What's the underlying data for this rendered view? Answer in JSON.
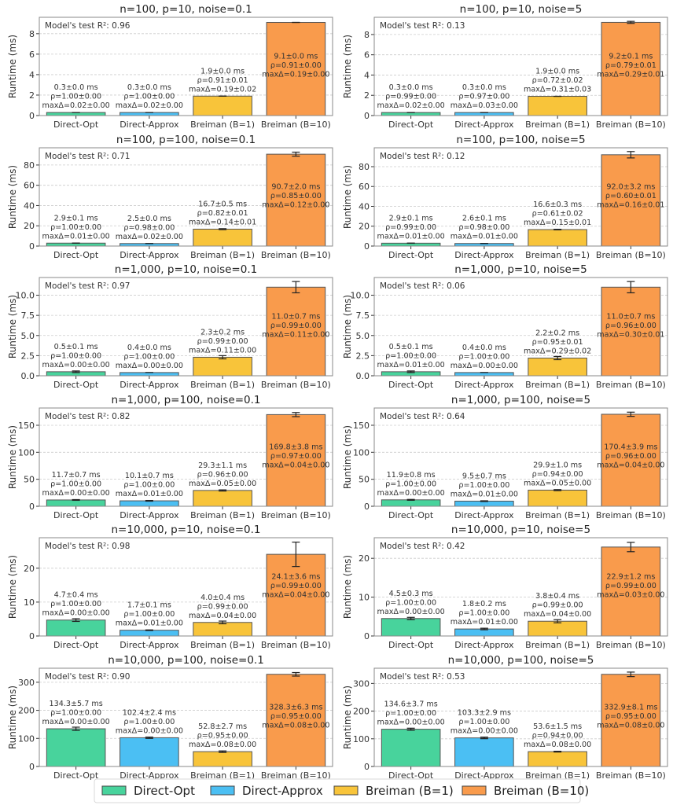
{
  "chart_data": {
    "type": "bar",
    "layout": "6 rows x 2 columns grid of bar charts",
    "categories": [
      "Direct-Opt",
      "Direct-Approx",
      "Breiman (B=1)",
      "Breiman (B=10)"
    ],
    "colors": [
      "#48d39c",
      "#4bbff3",
      "#f8c43a",
      "#f99b4c"
    ],
    "ylabel": "Runtime (ms)",
    "grid": true,
    "legend": {
      "placement": "bottom-center",
      "entries": [
        "Direct-Opt",
        "Direct-Approx",
        "Breiman (B=1)",
        "Breiman (B=10)"
      ]
    },
    "panels": [
      {
        "title": "n=100, p=10, noise=0.1",
        "r2_label": "Model's test R²: 0.96",
        "ylim": [
          0,
          9.6
        ],
        "yticks": [
          0,
          2,
          4,
          6,
          8
        ],
        "ytick_labels": [
          "0",
          "2",
          "4",
          "6",
          "8"
        ],
        "values": [
          0.3,
          0.3,
          1.9,
          9.1
        ],
        "errors": [
          0.0,
          0.0,
          0.0,
          0.0
        ],
        "labels": [
          [
            "0.3±0.0 ms",
            "ρ=1.00±0.00",
            "maxΔ=0.02±0.00"
          ],
          [
            "0.3±0.0 ms",
            "ρ=1.00±0.00",
            "maxΔ=0.02±0.00"
          ],
          [
            "1.9±0.0 ms",
            "ρ=0.91±0.01",
            "maxΔ=0.19±0.02"
          ],
          [
            "9.1±0.0 ms",
            "ρ=0.91±0.00",
            "maxΔ=0.19±0.00"
          ]
        ]
      },
      {
        "title": "n=100, p=10, noise=5",
        "r2_label": "Model's test R²: 0.13",
        "ylim": [
          0,
          9.7
        ],
        "yticks": [
          0,
          2,
          4,
          6,
          8
        ],
        "ytick_labels": [
          "0",
          "2",
          "4",
          "6",
          "8"
        ],
        "values": [
          0.3,
          0.3,
          1.9,
          9.2
        ],
        "errors": [
          0.0,
          0.0,
          0.0,
          0.1
        ],
        "labels": [
          [
            "0.3±0.0 ms",
            "ρ=0.99±0.00",
            "maxΔ=0.02±0.00"
          ],
          [
            "0.3±0.0 ms",
            "ρ=0.97±0.00",
            "maxΔ=0.03±0.00"
          ],
          [
            "1.9±0.0 ms",
            "ρ=0.72±0.02",
            "maxΔ=0.31±0.03"
          ],
          [
            "9.2±0.1 ms",
            "ρ=0.79±0.01",
            "maxΔ=0.29±0.01"
          ]
        ]
      },
      {
        "title": "n=100, p=100, noise=0.1",
        "r2_label": "Model's test R²: 0.71",
        "ylim": [
          0,
          97
        ],
        "yticks": [
          0,
          20,
          40,
          60,
          80
        ],
        "ytick_labels": [
          "0",
          "20",
          "40",
          "60",
          "80"
        ],
        "values": [
          2.9,
          2.5,
          16.7,
          90.7
        ],
        "errors": [
          0.1,
          0.0,
          0.5,
          2.0
        ],
        "labels": [
          [
            "2.9±0.1 ms",
            "ρ=1.00±0.00",
            "maxΔ=0.01±0.00"
          ],
          [
            "2.5±0.0 ms",
            "ρ=0.98±0.00",
            "maxΔ=0.02±0.00"
          ],
          [
            "16.7±0.5 ms",
            "ρ=0.82±0.01",
            "maxΔ=0.14±0.01"
          ],
          [
            "90.7±2.0 ms",
            "ρ=0.85±0.00",
            "maxΔ=0.12±0.00"
          ]
        ]
      },
      {
        "title": "n=100, p=100, noise=5",
        "r2_label": "Model's test R²: 0.12",
        "ylim": [
          0,
          99
        ],
        "yticks": [
          0,
          20,
          40,
          60,
          80
        ],
        "ytick_labels": [
          "0",
          "20",
          "40",
          "60",
          "80"
        ],
        "values": [
          2.9,
          2.6,
          16.6,
          92.0
        ],
        "errors": [
          0.1,
          0.1,
          0.3,
          3.2
        ],
        "labels": [
          [
            "2.9±0.1 ms",
            "ρ=0.99±0.00",
            "maxΔ=0.01±0.00"
          ],
          [
            "2.6±0.1 ms",
            "ρ=0.98±0.00",
            "maxΔ=0.01±0.00"
          ],
          [
            "16.6±0.3 ms",
            "ρ=0.61±0.02",
            "maxΔ=0.15±0.01"
          ],
          [
            "92.0±3.2 ms",
            "ρ=0.60±0.01",
            "maxΔ=0.16±0.01"
          ]
        ]
      },
      {
        "title": "n=1,000, p=10, noise=0.1",
        "r2_label": "Model's test R²: 0.97",
        "ylim": [
          0,
          12.2
        ],
        "yticks": [
          0,
          2.5,
          5,
          7.5,
          10
        ],
        "ytick_labels": [
          "0.0",
          "2.5",
          "5.0",
          "7.5",
          "10.0"
        ],
        "values": [
          0.5,
          0.4,
          2.3,
          11.0
        ],
        "errors": [
          0.1,
          0.0,
          0.2,
          0.7
        ],
        "labels": [
          [
            "0.5±0.1 ms",
            "ρ=1.00±0.00",
            "maxΔ=0.00±0.00"
          ],
          [
            "0.4±0.0 ms",
            "ρ=1.00±0.00",
            "maxΔ=0.00±0.00"
          ],
          [
            "2.3±0.2 ms",
            "ρ=0.99±0.00",
            "maxΔ=0.11±0.00"
          ],
          [
            "11.0±0.7 ms",
            "ρ=0.99±0.00",
            "maxΔ=0.11±0.00"
          ]
        ]
      },
      {
        "title": "n=1,000, p=10, noise=5",
        "r2_label": "Model's test R²: 0.06",
        "ylim": [
          0,
          12.2
        ],
        "yticks": [
          0,
          2.5,
          5,
          7.5,
          10
        ],
        "ytick_labels": [
          "0.0",
          "2.5",
          "5.0",
          "7.5",
          "10.0"
        ],
        "values": [
          0.5,
          0.4,
          2.2,
          11.0
        ],
        "errors": [
          0.1,
          0.0,
          0.2,
          0.7
        ],
        "labels": [
          [
            "0.5±0.1 ms",
            "ρ=1.00±0.00",
            "maxΔ=0.01±0.00"
          ],
          [
            "0.4±0.0 ms",
            "ρ=1.00±0.00",
            "maxΔ=0.00±0.00"
          ],
          [
            "2.2±0.2 ms",
            "ρ=0.95±0.01",
            "maxΔ=0.29±0.02"
          ],
          [
            "11.0±0.7 ms",
            "ρ=0.96±0.00",
            "maxΔ=0.30±0.01"
          ]
        ]
      },
      {
        "title": "n=1,000, p=100, noise=0.1",
        "r2_label": "Model's test R²: 0.82",
        "ylim": [
          0,
          182
        ],
        "yticks": [
          0,
          50,
          100,
          150
        ],
        "ytick_labels": [
          "0",
          "50",
          "100",
          "150"
        ],
        "values": [
          11.7,
          10.1,
          29.3,
          169.8
        ],
        "errors": [
          0.7,
          0.7,
          1.1,
          3.8
        ],
        "labels": [
          [
            "11.7±0.7 ms",
            "ρ=1.00±0.00",
            "maxΔ=0.00±0.00"
          ],
          [
            "10.1±0.7 ms",
            "ρ=1.00±0.00",
            "maxΔ=0.01±0.00"
          ],
          [
            "29.3±1.1 ms",
            "ρ=0.96±0.00",
            "maxΔ=0.05±0.00"
          ],
          [
            "169.8±3.8 ms",
            "ρ=0.97±0.00",
            "maxΔ=0.04±0.00"
          ]
        ]
      },
      {
        "title": "n=1,000, p=100, noise=5",
        "r2_label": "Model's test R²: 0.64",
        "ylim": [
          0,
          182
        ],
        "yticks": [
          0,
          50,
          100,
          150
        ],
        "ytick_labels": [
          "0",
          "50",
          "100",
          "150"
        ],
        "values": [
          11.9,
          9.5,
          29.9,
          170.4
        ],
        "errors": [
          0.8,
          0.7,
          1.0,
          3.9
        ],
        "labels": [
          [
            "11.9±0.8 ms",
            "ρ=1.00±0.00",
            "maxΔ=0.00±0.00"
          ],
          [
            "9.5±0.7 ms",
            "ρ=1.00±0.00",
            "maxΔ=0.01±0.00"
          ],
          [
            "29.9±1.0 ms",
            "ρ=0.94±0.00",
            "maxΔ=0.05±0.00"
          ],
          [
            "170.4±3.9 ms",
            "ρ=0.96±0.00",
            "maxΔ=0.04±0.00"
          ]
        ]
      },
      {
        "title": "n=10,000, p=10, noise=0.1",
        "r2_label": "Model's test R²: 0.98",
        "ylim": [
          0,
          29
        ],
        "yticks": [
          0,
          10,
          20
        ],
        "ytick_labels": [
          "0",
          "10",
          "20"
        ],
        "values": [
          4.7,
          1.7,
          4.0,
          24.1
        ],
        "errors": [
          0.4,
          0.1,
          0.4,
          3.6
        ],
        "labels": [
          [
            "4.7±0.4 ms",
            "ρ=1.00±0.00",
            "maxΔ=0.00±0.00"
          ],
          [
            "1.7±0.1 ms",
            "ρ=1.00±0.00",
            "maxΔ=0.01±0.00"
          ],
          [
            "4.0±0.4 ms",
            "ρ=0.99±0.00",
            "maxΔ=0.04±0.00"
          ],
          [
            "24.1±3.6 ms",
            "ρ=0.99±0.00",
            "maxΔ=0.04±0.00"
          ]
        ]
      },
      {
        "title": "n=10,000, p=10, noise=5",
        "r2_label": "Model's test R²: 0.42",
        "ylim": [
          0,
          25.3
        ],
        "yticks": [
          0,
          10,
          20
        ],
        "ytick_labels": [
          "0",
          "10",
          "20"
        ],
        "values": [
          4.5,
          1.8,
          3.8,
          22.9
        ],
        "errors": [
          0.3,
          0.2,
          0.4,
          1.2
        ],
        "labels": [
          [
            "4.5±0.3 ms",
            "ρ=1.00±0.00",
            "maxΔ=0.00±0.00"
          ],
          [
            "1.8±0.2 ms",
            "ρ=1.00±0.00",
            "maxΔ=0.01±0.00"
          ],
          [
            "3.8±0.4 ms",
            "ρ=0.99±0.00",
            "maxΔ=0.04±0.00"
          ],
          [
            "22.9±1.2 ms",
            "ρ=0.99±0.00",
            "maxΔ=0.03±0.00"
          ]
        ]
      },
      {
        "title": "n=10,000, p=100, noise=0.1",
        "r2_label": "Model's test R²: 0.90",
        "ylim": [
          0,
          350
        ],
        "yticks": [
          0,
          100,
          200,
          300
        ],
        "ytick_labels": [
          "0",
          "100",
          "200",
          "300"
        ],
        "values": [
          134.3,
          102.4,
          52.8,
          328.3
        ],
        "errors": [
          5.7,
          2.4,
          2.7,
          6.3
        ],
        "labels": [
          [
            "134.3±5.7 ms",
            "ρ=1.00±0.00",
            "maxΔ=0.00±0.00"
          ],
          [
            "102.4±2.4 ms",
            "ρ=1.00±0.00",
            "maxΔ=0.00±0.00"
          ],
          [
            "52.8±2.7 ms",
            "ρ=0.95±0.00",
            "maxΔ=0.08±0.00"
          ],
          [
            "328.3±6.3 ms",
            "ρ=0.95±0.00",
            "maxΔ=0.08±0.00"
          ]
        ]
      },
      {
        "title": "n=10,000, p=100, noise=5",
        "r2_label": "Model's test R²: 0.53",
        "ylim": [
          0,
          355
        ],
        "yticks": [
          0,
          100,
          200,
          300
        ],
        "ytick_labels": [
          "0",
          "100",
          "200",
          "300"
        ],
        "values": [
          134.6,
          103.3,
          53.6,
          332.9
        ],
        "errors": [
          3.7,
          2.9,
          1.5,
          8.1
        ],
        "labels": [
          [
            "134.6±3.7 ms",
            "ρ=1.00±0.00",
            "maxΔ=0.00±0.00"
          ],
          [
            "103.3±2.9 ms",
            "ρ=1.00±0.00",
            "maxΔ=0.00±0.00"
          ],
          [
            "53.6±1.5 ms",
            "ρ=0.94±0.00",
            "maxΔ=0.08±0.00"
          ],
          [
            "332.9±8.1 ms",
            "ρ=0.95±0.00",
            "maxΔ=0.08±0.00"
          ]
        ]
      }
    ]
  }
}
